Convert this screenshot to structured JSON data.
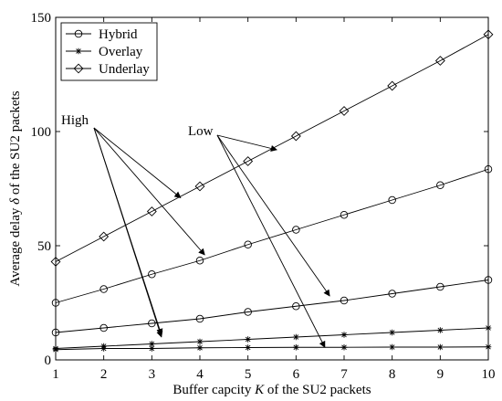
{
  "chart_data": {
    "type": "line",
    "x": [
      1,
      2,
      3,
      4,
      5,
      6,
      7,
      8,
      9,
      10
    ],
    "xlim": [
      1,
      10
    ],
    "ylim": [
      0,
      150
    ],
    "xticks": [
      1,
      2,
      3,
      4,
      5,
      6,
      7,
      8,
      9,
      10
    ],
    "yticks": [
      0,
      50,
      100,
      150
    ],
    "xlabel_prefix": "Buffer capcity ",
    "xlabel_var": "K",
    "xlabel_suffix": " of the SU2 packets",
    "ylabel_prefix": "Average delay ",
    "ylabel_var": "δ",
    "ylabel_suffix": " of the SU2 packets",
    "grid": false,
    "legend_position": "top-left",
    "series": [
      {
        "name": "Hybrid",
        "marker": "circle",
        "lines": [
          [
            25,
            31,
            37.5,
            43.5,
            50.5,
            57,
            63.5,
            70,
            76.5,
            83.5
          ],
          [
            12,
            14,
            16,
            18,
            21,
            23.5,
            26,
            29,
            32,
            35
          ]
        ]
      },
      {
        "name": "Overlay",
        "marker": "star",
        "lines": [
          [
            5,
            6,
            7,
            8,
            9,
            10,
            11,
            12,
            13,
            14
          ],
          [
            4.5,
            5,
            5,
            5.3,
            5.4,
            5.5,
            5.5,
            5.6,
            5.6,
            5.7
          ]
        ]
      },
      {
        "name": "Underlay",
        "marker": "diamond",
        "lines": [
          [
            43,
            54,
            65,
            76,
            87,
            98,
            109,
            120,
            131,
            142.5
          ]
        ]
      }
    ],
    "annotations": [
      {
        "label": "High",
        "targets": [
          [
            3.6,
            71
          ],
          [
            4.1,
            46
          ],
          [
            3.2,
            11
          ],
          [
            3.2,
            10
          ]
        ]
      },
      {
        "label": "Low",
        "targets": [
          [
            5.6,
            92
          ],
          [
            6.7,
            28
          ],
          [
            6.6,
            5.5
          ]
        ]
      }
    ]
  }
}
